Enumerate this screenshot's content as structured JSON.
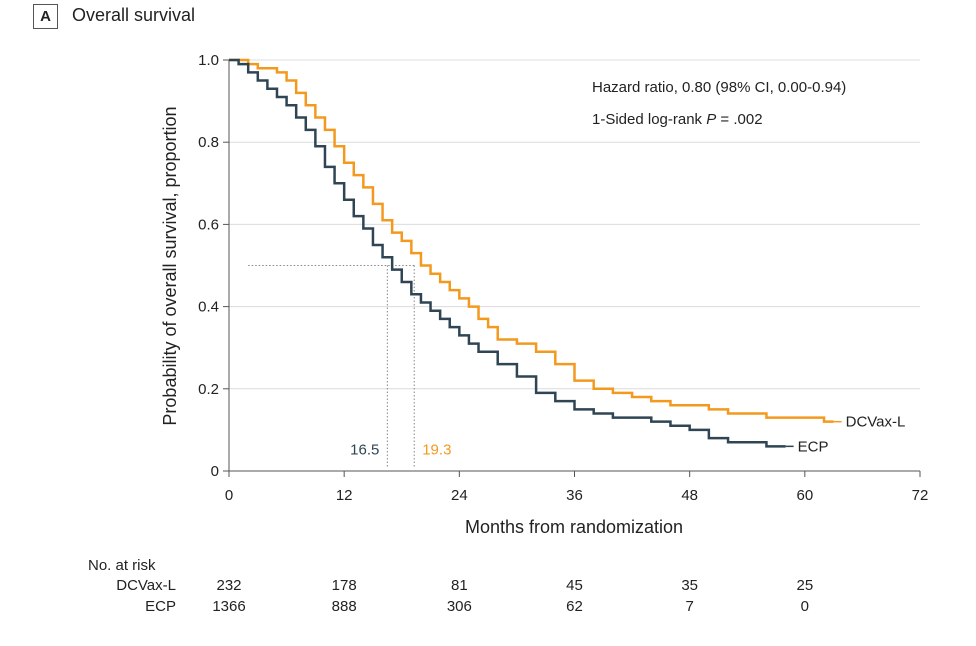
{
  "panel": {
    "label": "A",
    "title": "Overall survival"
  },
  "chart_data": {
    "type": "line",
    "title": "Overall survival",
    "xlabel": "Months from randomization",
    "ylabel": "Probability of overall survival, proportion",
    "xlim": [
      0,
      72
    ],
    "ylim": [
      0,
      1.0
    ],
    "xticks": [
      0,
      12,
      24,
      36,
      48,
      60,
      72
    ],
    "yticks": [
      {
        "value": 0,
        "label": "0"
      },
      {
        "value": 0.2,
        "label": "0.2"
      },
      {
        "value": 0.4,
        "label": "0.4"
      },
      {
        "value": 0.6,
        "label": "0.6"
      },
      {
        "value": 0.8,
        "label": "0.8"
      },
      {
        "value": 1.0,
        "label": "1.0"
      }
    ],
    "grid": "horizontal",
    "series": [
      {
        "name": "DCVax-L",
        "color": "#f39a1e",
        "x": [
          0,
          2,
          3,
          5,
          6,
          7,
          8,
          9,
          10,
          11,
          12,
          13,
          14,
          15,
          16,
          17,
          18,
          19,
          20,
          21,
          22,
          23,
          24,
          25,
          26,
          27,
          28,
          30,
          32,
          34,
          36,
          38,
          40,
          42,
          44,
          46,
          48,
          50,
          52,
          54,
          56,
          58,
          60,
          62,
          63
        ],
        "y": [
          1.0,
          0.99,
          0.98,
          0.97,
          0.95,
          0.92,
          0.89,
          0.86,
          0.83,
          0.79,
          0.75,
          0.72,
          0.69,
          0.65,
          0.61,
          0.58,
          0.56,
          0.53,
          0.5,
          0.48,
          0.46,
          0.44,
          0.42,
          0.4,
          0.37,
          0.35,
          0.32,
          0.31,
          0.29,
          0.26,
          0.22,
          0.2,
          0.19,
          0.18,
          0.17,
          0.16,
          0.16,
          0.15,
          0.14,
          0.14,
          0.13,
          0.13,
          0.13,
          0.12,
          0.12
        ]
      },
      {
        "name": "ECP",
        "color": "#2f4554",
        "x": [
          0,
          1,
          2,
          3,
          4,
          5,
          6,
          7,
          8,
          9,
          10,
          11,
          12,
          13,
          14,
          15,
          16,
          17,
          18,
          19,
          20,
          21,
          22,
          23,
          24,
          25,
          26,
          28,
          30,
          32,
          34,
          36,
          38,
          40,
          42,
          44,
          46,
          48,
          50,
          52,
          54,
          56,
          58
        ],
        "y": [
          1.0,
          0.99,
          0.97,
          0.95,
          0.93,
          0.91,
          0.89,
          0.86,
          0.83,
          0.79,
          0.74,
          0.7,
          0.66,
          0.62,
          0.59,
          0.55,
          0.52,
          0.49,
          0.46,
          0.43,
          0.41,
          0.39,
          0.37,
          0.35,
          0.33,
          0.31,
          0.29,
          0.26,
          0.23,
          0.19,
          0.17,
          0.15,
          0.14,
          0.13,
          0.13,
          0.12,
          0.11,
          0.1,
          0.08,
          0.07,
          0.07,
          0.06,
          0.06
        ]
      }
    ],
    "series_labels": [
      "DCVax-L",
      "ECP"
    ],
    "median_survival": {
      "reference_y": 0.5,
      "values": [
        {
          "series": "ECP",
          "value": 16.5,
          "label": "16.5",
          "color": "#2f4554"
        },
        {
          "series": "DCVax-L",
          "value": 19.3,
          "label": "19.3",
          "color": "#f39a1e"
        }
      ]
    },
    "annotations": {
      "hazard_ratio": "Hazard ratio, 0.80 (98% CI, 0.00-0.94)",
      "logrank_prefix": "1-Sided log-rank ",
      "logrank_var": "P",
      "logrank_suffix": " = .002"
    },
    "risk_table": {
      "title": "No. at risk",
      "times": [
        0,
        12,
        24,
        36,
        48,
        60
      ],
      "rows": [
        {
          "name": "DCVax-L",
          "values": [
            "232",
            "178",
            "81",
            "45",
            "35",
            "25"
          ]
        },
        {
          "name": "ECP",
          "values": [
            "1366",
            "888",
            "306",
            "62",
            "7",
            "0"
          ]
        }
      ]
    }
  }
}
